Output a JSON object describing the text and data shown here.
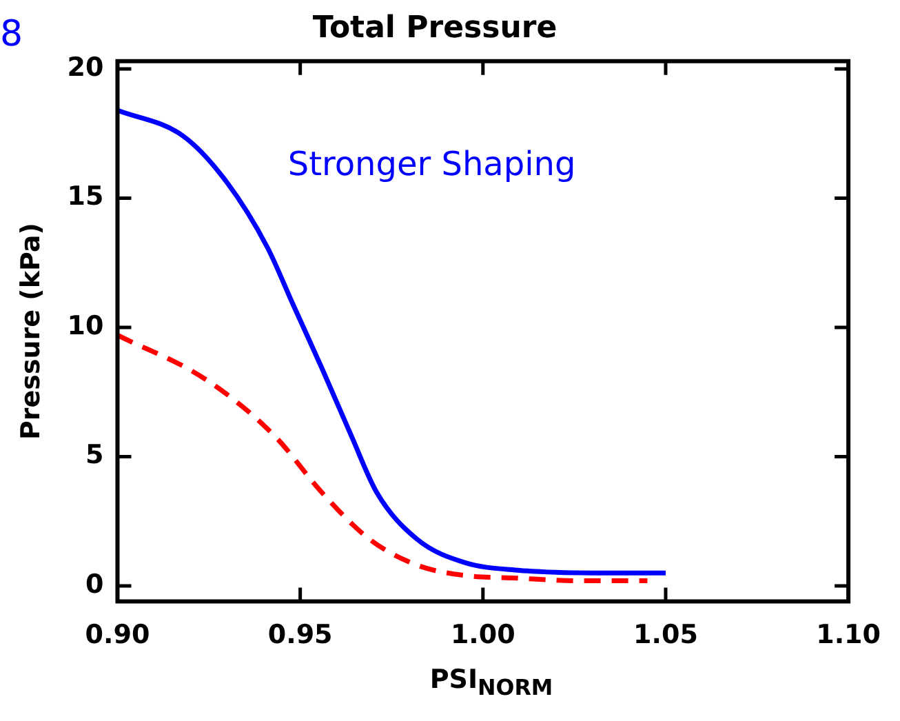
{
  "chart_data": {
    "type": "line",
    "title": "Total Pressure",
    "xlabel": "PSI$_{NORM}$",
    "ylabel": "Pressure (kPa)",
    "annotations": [
      "8",
      "Stronger Shaping"
    ],
    "xlim": [
      0.9,
      1.1
    ],
    "ylim": [
      -0.6,
      20.3
    ],
    "xticks": [
      {
        "value": 0.9,
        "label": "0.90"
      },
      {
        "value": 0.95,
        "label": "0.95"
      },
      {
        "value": 1.0,
        "label": "1.00"
      },
      {
        "value": 1.05,
        "label": "1.05"
      },
      {
        "value": 1.1,
        "label": "1.10"
      }
    ],
    "yticks": [
      0,
      5,
      10,
      15,
      20
    ],
    "grid": false,
    "legend": false,
    "marker": "none",
    "series": [
      {
        "color": "#0000ff",
        "line_style": "solid",
        "x": [
          0.9,
          0.918,
          0.93,
          0.941,
          0.948,
          0.956,
          0.964,
          0.971,
          0.982,
          0.995,
          1.01,
          1.03,
          1.05
        ],
        "values": [
          18.4,
          17.4,
          15.6,
          13.1,
          10.9,
          8.4,
          5.8,
          3.6,
          1.8,
          0.9,
          0.6,
          0.5,
          0.5
        ]
      },
      {
        "color": "#ff0000",
        "line_style": "dashed",
        "x": [
          0.9,
          0.924,
          0.943,
          0.956,
          0.969,
          0.982,
          0.995,
          1.009,
          1.025,
          1.045
        ],
        "values": [
          9.7,
          8.0,
          5.8,
          3.6,
          1.8,
          0.8,
          0.4,
          0.3,
          0.2,
          0.2
        ]
      }
    ]
  }
}
